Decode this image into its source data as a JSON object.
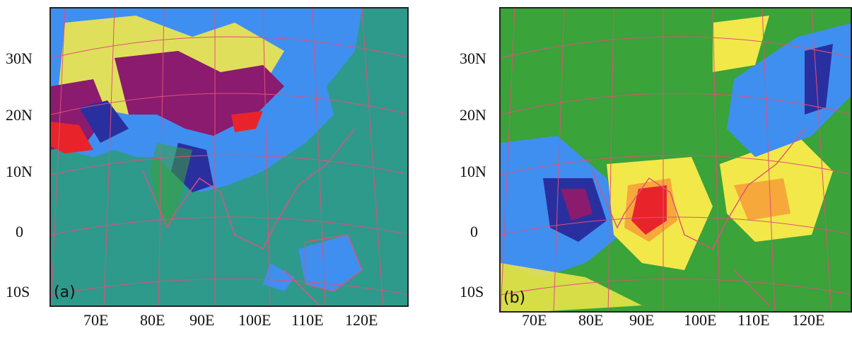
{
  "panels": [
    {
      "label": "(a)",
      "background_color": "#2e9a8c",
      "lat_labels": [
        "30N",
        "20N",
        "10N",
        "0",
        "10S"
      ],
      "lon_labels": [
        "70E",
        "80E",
        "90E",
        "100E",
        "110E",
        "120E"
      ],
      "blob_colors": {
        "yellow": "#f2e84a",
        "blue": "#3f8ff0",
        "navy": "#2a2fa0",
        "purple": "#8a1b6e",
        "green": "#3aa23a",
        "red": "#e8242a"
      }
    },
    {
      "label": "(b)",
      "background_color": "#3aa33a",
      "lat_labels": [
        "30N",
        "20N",
        "10N",
        "0",
        "10S"
      ],
      "lon_labels": [
        "70E",
        "80E",
        "90E",
        "100E",
        "110E",
        "120E"
      ],
      "blob_colors": {
        "yellow": "#f2e84a",
        "orange": "#f7a83a",
        "red": "#e8242a",
        "blue": "#3f8ff0",
        "navy": "#2a2fa0",
        "purple": "#8a1b6e"
      }
    }
  ],
  "gridline_color": "#e0507a"
}
